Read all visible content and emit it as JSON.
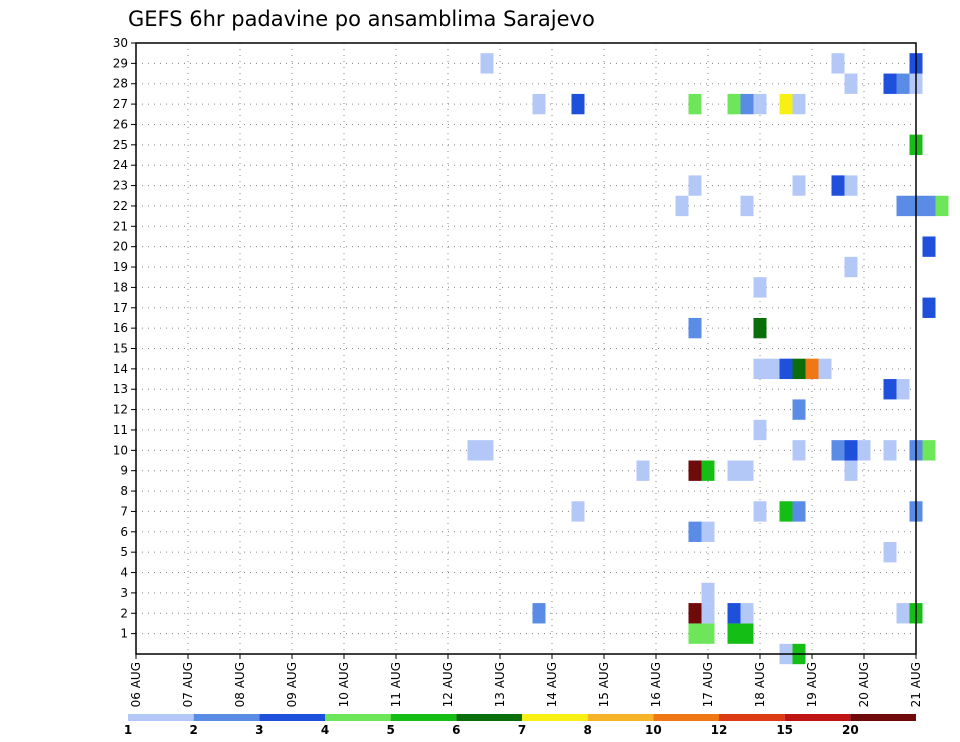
{
  "chart_data": {
    "type": "heatmap",
    "title": "GEFS 6hr padavine po ansamblima Sarajevo",
    "y_ticks": [
      "1",
      "2",
      "3",
      "4",
      "5",
      "6",
      "7",
      "8",
      "9",
      "10",
      "11",
      "12",
      "13",
      "14",
      "15",
      "16",
      "17",
      "18",
      "19",
      "20",
      "21",
      "22",
      "23",
      "24",
      "25",
      "26",
      "27",
      "28",
      "29",
      "30"
    ],
    "x_ticks": [
      "06 AUG",
      "07 AUG",
      "08 AUG",
      "09 AUG",
      "10 AUG",
      "11 AUG",
      "12 AUG",
      "13 AUG",
      "14 AUG",
      "15 AUG",
      "16 AUG",
      "17 AUG",
      "18 AUG",
      "19 AUG",
      "20 AUG",
      "21 AUG"
    ],
    "x_range": [
      "2017-08-06T00",
      "2017-08-21T00"
    ],
    "y_range": [
      0,
      30
    ],
    "grid": true,
    "colorbar": {
      "colors": [
        "#b4c8f8",
        "#5a8ce6",
        "#1e50dc",
        "#6ee65a",
        "#14be14",
        "#0a6e0a",
        "#f8f014",
        "#f8b428",
        "#f07814",
        "#dc3c14",
        "#be1414",
        "#6e0a0a"
      ],
      "labels": [
        "1",
        "2",
        "3",
        "4",
        "5",
        "6",
        "7",
        "8",
        "10",
        "12",
        "15",
        "20"
      ]
    },
    "cells": [
      {
        "member": 1,
        "time": "2017-08-16T18",
        "color": "#6ee65a"
      },
      {
        "member": 1,
        "time": "2017-08-17T00",
        "color": "#6ee65a"
      },
      {
        "member": 1,
        "time": "2017-08-17T12",
        "color": "#14be14"
      },
      {
        "member": 1,
        "time": "2017-08-17T18",
        "color": "#14be14"
      },
      {
        "member": 0,
        "time": "2017-08-18T12",
        "color": "#b4c8f8"
      },
      {
        "member": 0,
        "time": "2017-08-18T18",
        "color": "#14be14"
      },
      {
        "member": 2,
        "time": "2017-08-13T18",
        "color": "#5a8ce6"
      },
      {
        "member": 2,
        "time": "2017-08-16T18",
        "color": "#6e0a0a"
      },
      {
        "member": 2,
        "time": "2017-08-17T00",
        "color": "#b4c8f8"
      },
      {
        "member": 2,
        "time": "2017-08-17T12",
        "color": "#1e50dc"
      },
      {
        "member": 2,
        "time": "2017-08-17T18",
        "color": "#b4c8f8"
      },
      {
        "member": 2,
        "time": "2017-08-20T18",
        "color": "#b4c8f8"
      },
      {
        "member": 2,
        "time": "2017-08-21T00",
        "color": "#14be14"
      },
      {
        "member": 3,
        "time": "2017-08-17T00",
        "color": "#b4c8f8"
      },
      {
        "member": 5,
        "time": "2017-08-20T12",
        "color": "#b4c8f8"
      },
      {
        "member": 6,
        "time": "2017-08-16T18",
        "color": "#5a8ce6"
      },
      {
        "member": 6,
        "time": "2017-08-17T00",
        "color": "#b4c8f8"
      },
      {
        "member": 7,
        "time": "2017-08-14T12",
        "color": "#b4c8f8"
      },
      {
        "member": 7,
        "time": "2017-08-18T00",
        "color": "#b4c8f8"
      },
      {
        "member": 7,
        "time": "2017-08-18T12",
        "color": "#14be14"
      },
      {
        "member": 7,
        "time": "2017-08-18T18",
        "color": "#5a8ce6"
      },
      {
        "member": 7,
        "time": "2017-08-21T00",
        "color": "#5a8ce6"
      },
      {
        "member": 9,
        "time": "2017-08-15T18",
        "color": "#b4c8f8"
      },
      {
        "member": 9,
        "time": "2017-08-16T18",
        "color": "#6e0a0a"
      },
      {
        "member": 9,
        "time": "2017-08-17T00",
        "color": "#14be14"
      },
      {
        "member": 9,
        "time": "2017-08-17T12",
        "color": "#b4c8f8"
      },
      {
        "member": 9,
        "time": "2017-08-17T18",
        "color": "#b4c8f8"
      },
      {
        "member": 9,
        "time": "2017-08-19T18",
        "color": "#b4c8f8"
      },
      {
        "member": 10,
        "time": "2017-08-12T12",
        "color": "#b4c8f8"
      },
      {
        "member": 10,
        "time": "2017-08-12T18",
        "color": "#b4c8f8"
      },
      {
        "member": 10,
        "time": "2017-08-18T18",
        "color": "#b4c8f8"
      },
      {
        "member": 10,
        "time": "2017-08-19T12",
        "color": "#5a8ce6"
      },
      {
        "member": 10,
        "time": "2017-08-19T18",
        "color": "#1e50dc"
      },
      {
        "member": 10,
        "time": "2017-08-20T00",
        "color": "#b4c8f8"
      },
      {
        "member": 10,
        "time": "2017-08-20T12",
        "color": "#b4c8f8"
      },
      {
        "member": 10,
        "time": "2017-08-21T00",
        "color": "#5a8ce6"
      },
      {
        "member": 10,
        "time": "2017-08-21T06",
        "color": "#6ee65a"
      },
      {
        "member": 11,
        "time": "2017-08-18T00",
        "color": "#b4c8f8"
      },
      {
        "member": 12,
        "time": "2017-08-18T18",
        "color": "#5a8ce6"
      },
      {
        "member": 13,
        "time": "2017-08-20T12",
        "color": "#1e50dc"
      },
      {
        "member": 13,
        "time": "2017-08-20T18",
        "color": "#b4c8f8"
      },
      {
        "member": 14,
        "time": "2017-08-18T00",
        "color": "#b4c8f8"
      },
      {
        "member": 14,
        "time": "2017-08-18T06",
        "color": "#b4c8f8"
      },
      {
        "member": 14,
        "time": "2017-08-18T12",
        "color": "#1e50dc"
      },
      {
        "member": 14,
        "time": "2017-08-18T18",
        "color": "#0a6e0a"
      },
      {
        "member": 14,
        "time": "2017-08-19T00",
        "color": "#f07814"
      },
      {
        "member": 14,
        "time": "2017-08-19T06",
        "color": "#b4c8f8"
      },
      {
        "member": 16,
        "time": "2017-08-16T18",
        "color": "#5a8ce6"
      },
      {
        "member": 16,
        "time": "2017-08-18T00",
        "color": "#0a6e0a"
      },
      {
        "member": 18,
        "time": "2017-08-18T00",
        "color": "#b4c8f8"
      },
      {
        "member": 17,
        "time": "2017-08-21T06",
        "color": "#1e50dc"
      },
      {
        "member": 19,
        "time": "2017-08-19T18",
        "color": "#b4c8f8"
      },
      {
        "member": 20,
        "time": "2017-08-21T06",
        "color": "#1e50dc"
      },
      {
        "member": 22,
        "time": "2017-08-16T12",
        "color": "#b4c8f8"
      },
      {
        "member": 22,
        "time": "2017-08-17T18",
        "color": "#b4c8f8"
      },
      {
        "member": 22,
        "time": "2017-08-20T18",
        "color": "#5a8ce6"
      },
      {
        "member": 22,
        "time": "2017-08-21T00",
        "color": "#5a8ce6"
      },
      {
        "member": 22,
        "time": "2017-08-21T06",
        "color": "#5a8ce6"
      },
      {
        "member": 22,
        "time": "2017-08-21T12",
        "color": "#6ee65a"
      },
      {
        "member": 23,
        "time": "2017-08-16T18",
        "color": "#b4c8f8"
      },
      {
        "member": 23,
        "time": "2017-08-18T18",
        "color": "#b4c8f8"
      },
      {
        "member": 23,
        "time": "2017-08-19T12",
        "color": "#1e50dc"
      },
      {
        "member": 23,
        "time": "2017-08-19T18",
        "color": "#b4c8f8"
      },
      {
        "member": 25,
        "time": "2017-08-21T00",
        "color": "#14be14"
      },
      {
        "member": 27,
        "time": "2017-08-13T18",
        "color": "#b4c8f8"
      },
      {
        "member": 27,
        "time": "2017-08-14T12",
        "color": "#1e50dc"
      },
      {
        "member": 27,
        "time": "2017-08-16T18",
        "color": "#6ee65a"
      },
      {
        "member": 27,
        "time": "2017-08-17T12",
        "color": "#6ee65a"
      },
      {
        "member": 27,
        "time": "2017-08-17T18",
        "color": "#5a8ce6"
      },
      {
        "member": 27,
        "time": "2017-08-18T00",
        "color": "#b4c8f8"
      },
      {
        "member": 27,
        "time": "2017-08-18T12",
        "color": "#f8f014"
      },
      {
        "member": 27,
        "time": "2017-08-18T18",
        "color": "#b4c8f8"
      },
      {
        "member": 28,
        "time": "2017-08-19T18",
        "color": "#b4c8f8"
      },
      {
        "member": 28,
        "time": "2017-08-20T12",
        "color": "#1e50dc"
      },
      {
        "member": 28,
        "time": "2017-08-20T18",
        "color": "#5a8ce6"
      },
      {
        "member": 28,
        "time": "2017-08-21T00",
        "color": "#b4c8f8"
      },
      {
        "member": 29,
        "time": "2017-08-12T18",
        "color": "#b4c8f8"
      },
      {
        "member": 29,
        "time": "2017-08-19T12",
        "color": "#b4c8f8"
      },
      {
        "member": 29,
        "time": "2017-08-21T00",
        "color": "#1e50dc"
      }
    ]
  }
}
